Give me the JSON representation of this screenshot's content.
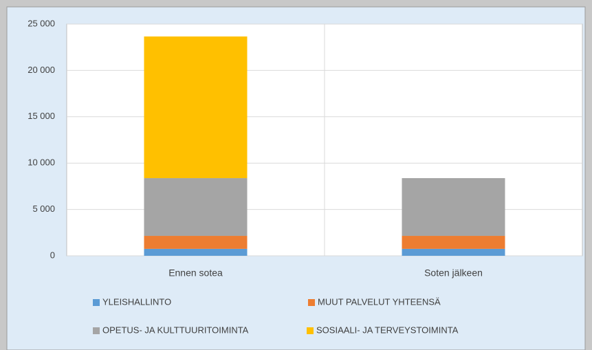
{
  "chart_data": {
    "type": "stacked_bar",
    "categories": [
      "Ennen sotea",
      "Soten jälkeen"
    ],
    "series": [
      {
        "name": "YLEISHALLINTO",
        "color": "#5b9bd5",
        "values": [
          750,
          750
        ]
      },
      {
        "name": "MUUT PALVELUT YHTEENSÄ",
        "color": "#ed7d31",
        "values": [
          1400,
          1400
        ]
      },
      {
        "name": "OPETUS- JA KULTTUURITOIMINTA",
        "color": "#a5a5a5",
        "values": [
          6230,
          6230
        ]
      },
      {
        "name": "SOSIAALI- JA TERVEYSTOIMINTA",
        "color": "#ffc000",
        "values": [
          15280,
          0
        ]
      }
    ],
    "ylim": [
      0,
      25000
    ],
    "yticks": [
      0,
      {
        "value": 5000,
        "label": "5 000"
      },
      {
        "value": 10000,
        "label": "10 000"
      },
      {
        "value": 15000,
        "label": "15 000"
      },
      {
        "value": 20000,
        "label": "20 000"
      },
      {
        "value": 25000,
        "label": "25 000"
      }
    ],
    "grid": true,
    "legend": "bottom"
  }
}
